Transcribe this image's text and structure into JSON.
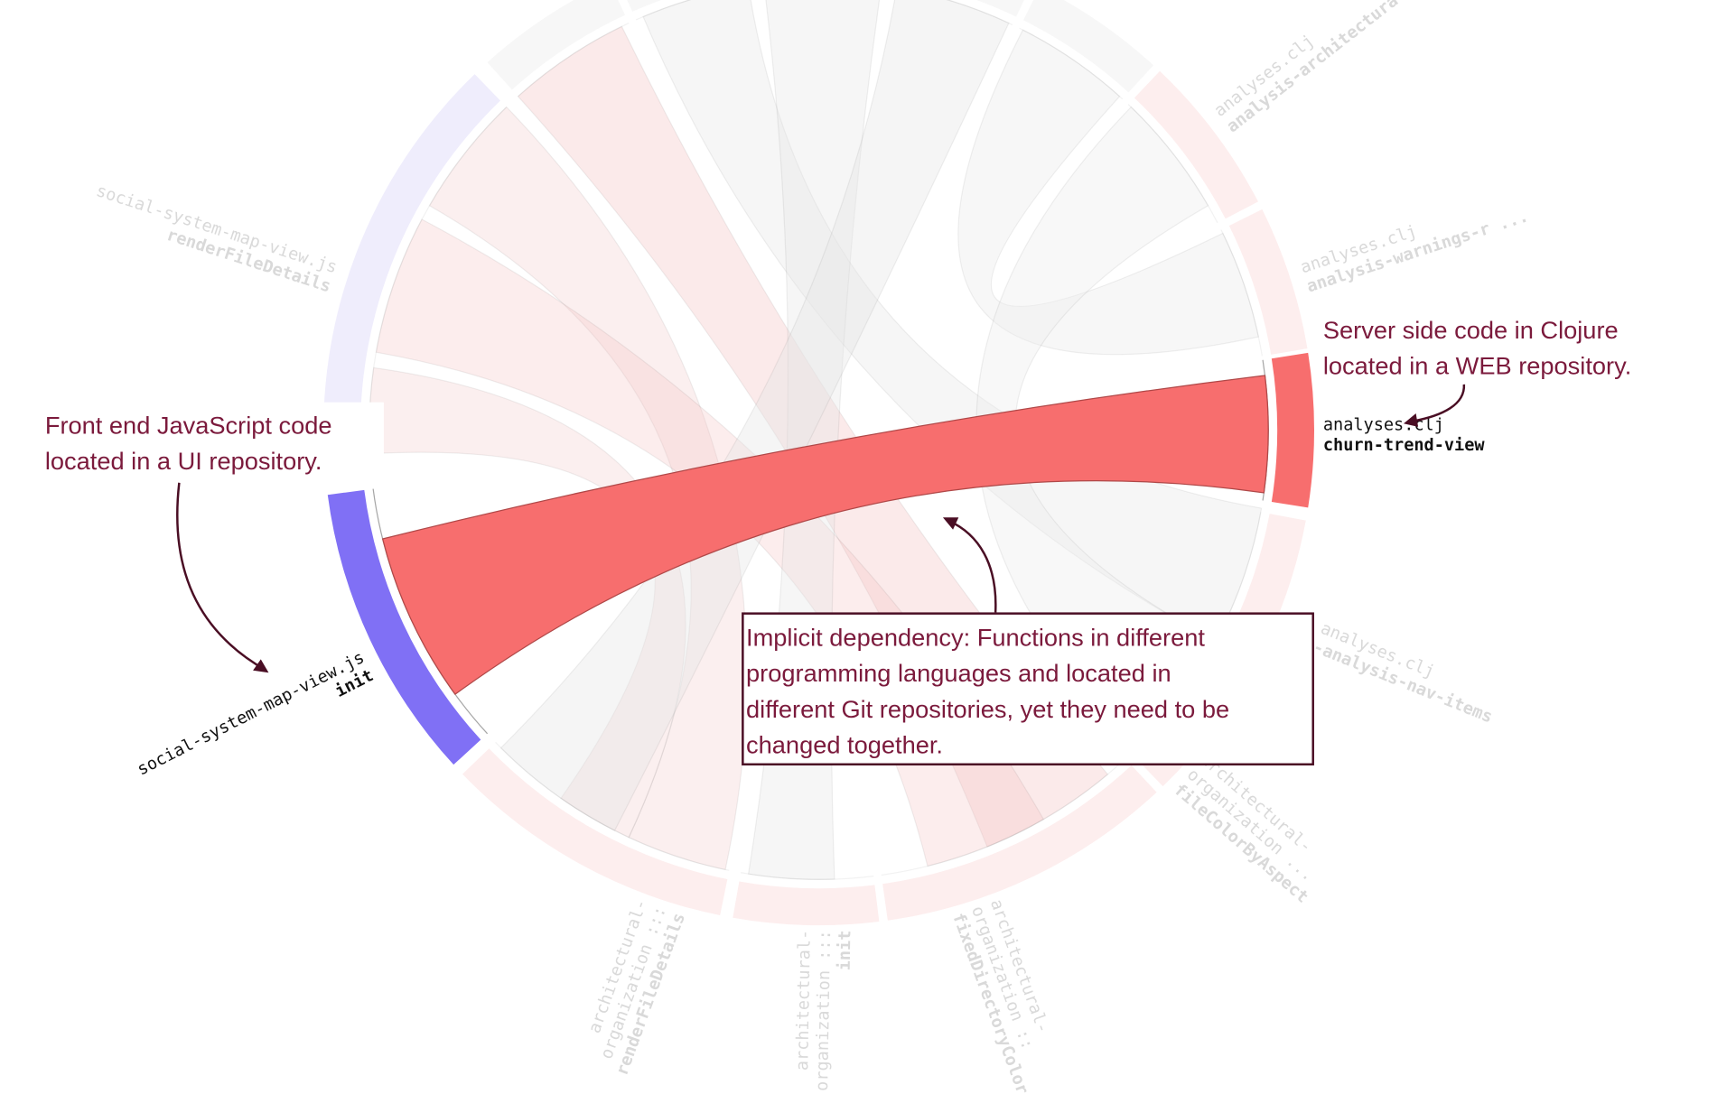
{
  "colors": {
    "ui_active": "#8070f5",
    "ui_faint": "#efedfc",
    "web_active": "#f76e6e",
    "web_faint": "#fdeeee",
    "other_faint": "#f7f7f7",
    "annotation_text": "#7b1a3c",
    "annotation_arrow": "#4a0e24"
  },
  "labels": [
    {
      "file": "social-system-map-view.js",
      "fn": "renderFileDetails",
      "active": false
    },
    {
      "file": "social-system-map-view.js",
      "fn": "init",
      "active": true
    },
    {
      "file": "analyses.clj",
      "fn": "analysis-architectural-",
      "active": false
    },
    {
      "file": "analyses.clj",
      "fn": "analysis-warnings-r ...",
      "active": false
    },
    {
      "file": "analyses.clj",
      "fn": "churn-trend-view",
      "active": true
    },
    {
      "file": "analyses.clj",
      "fn": "-analysis-nav-items",
      "active": false
    },
    {
      "file": "architectural-organization ...",
      "fn": "fileColorByAspect",
      "active": false
    },
    {
      "file": "architectural-organization ::",
      "fn": "fixedDirectoryColor",
      "active": false
    },
    {
      "file": "architectural-organization :::",
      "fn": "init",
      "active": false
    },
    {
      "file": "architectural-organization :::",
      "fn": "renderFileDetails",
      "active": false
    }
  ],
  "annotations": {
    "frontend": [
      "Front end JavaScript code",
      "located in a UI repository."
    ],
    "server": [
      "Server side code in Clojure",
      "located in a WEB repository."
    ],
    "implicit": [
      "Implicit dependency: Functions in different",
      "programming languages and located in",
      "different Git repositories, yet they need to be",
      "changed together."
    ]
  }
}
